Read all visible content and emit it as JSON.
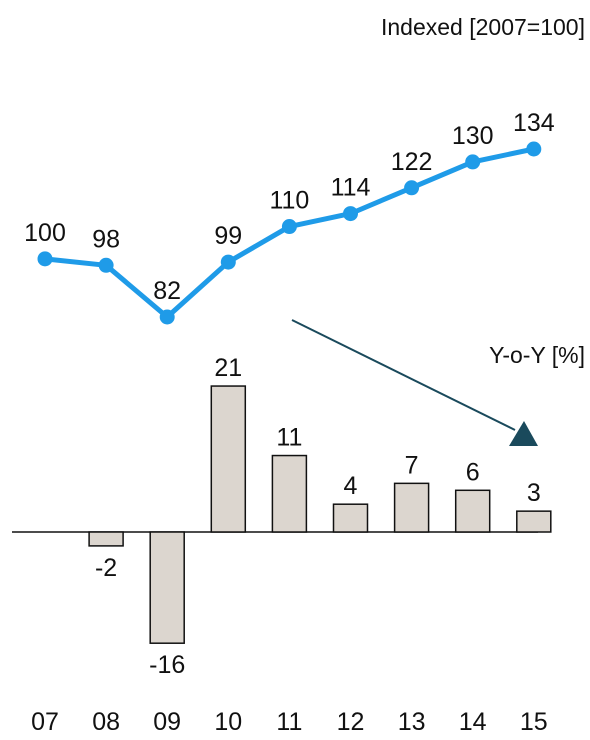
{
  "chart_data": [
    {
      "type": "line",
      "x": [
        "07",
        "08",
        "09",
        "10",
        "11",
        "12",
        "13",
        "14",
        "15"
      ],
      "values": [
        100,
        98,
        82,
        99,
        110,
        114,
        122,
        130,
        134
      ],
      "unit_label": "Indexed [2007=100]",
      "color": "#1f9be8"
    },
    {
      "type": "bar",
      "categories": [
        "07",
        "08",
        "09",
        "10",
        "11",
        "12",
        "13",
        "14",
        "15"
      ],
      "values": [
        null,
        -2,
        -16,
        21,
        11,
        4,
        7,
        6,
        3
      ],
      "unit_label": "Y-o-Y [%]",
      "bar_color": "#dcd6cf",
      "bar_border": "#111111"
    }
  ],
  "annotation": {
    "arrow_color": "#1a4a5c"
  }
}
